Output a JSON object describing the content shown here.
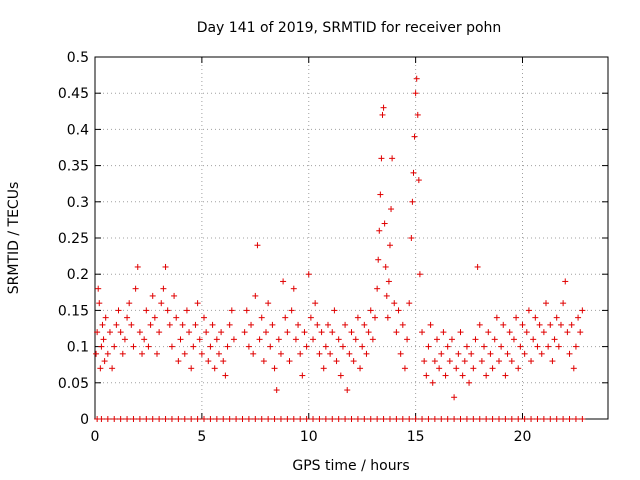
{
  "chart_data": {
    "type": "scatter",
    "title": "Day 141 of 2019, SRMTID for receiver pohn",
    "xlabel": "GPS time / hours",
    "ylabel": "SRMTID / TECUs",
    "xlim": [
      0,
      24
    ],
    "ylim": [
      0,
      0.5
    ],
    "x_ticks": [
      0,
      5,
      10,
      15,
      20
    ],
    "y_ticks": [
      0,
      0.05,
      0.1,
      0.15,
      0.2,
      0.25,
      0.3,
      0.35,
      0.4,
      0.45,
      0.5
    ],
    "grid": true,
    "marker": "+",
    "color": "#e00000",
    "series": [
      {
        "name": "SRMTID",
        "points": [
          [
            0.05,
            0.09
          ],
          [
            0.1,
            0.12
          ],
          [
            0.15,
            0.18
          ],
          [
            0.2,
            0.16
          ],
          [
            0.25,
            0.07
          ],
          [
            0.3,
            0.1
          ],
          [
            0.35,
            0.13
          ],
          [
            0.4,
            0.11
          ],
          [
            0.45,
            0.08
          ],
          [
            0.5,
            0.14
          ],
          [
            0.6,
            0.09
          ],
          [
            0.7,
            0.12
          ],
          [
            0.8,
            0.07
          ],
          [
            0.9,
            0.1
          ],
          [
            1.0,
            0.13
          ],
          [
            1.1,
            0.15
          ],
          [
            1.2,
            0.12
          ],
          [
            1.3,
            0.09
          ],
          [
            1.4,
            0.11
          ],
          [
            1.5,
            0.14
          ],
          [
            1.6,
            0.16
          ],
          [
            1.7,
            0.13
          ],
          [
            1.8,
            0.1
          ],
          [
            1.9,
            0.18
          ],
          [
            2.0,
            0.21
          ],
          [
            2.1,
            0.12
          ],
          [
            2.2,
            0.09
          ],
          [
            2.3,
            0.11
          ],
          [
            2.4,
            0.15
          ],
          [
            2.5,
            0.1
          ],
          [
            2.6,
            0.13
          ],
          [
            2.7,
            0.17
          ],
          [
            2.8,
            0.14
          ],
          [
            2.9,
            0.09
          ],
          [
            3.0,
            0.12
          ],
          [
            3.1,
            0.16
          ],
          [
            3.2,
            0.18
          ],
          [
            3.3,
            0.21
          ],
          [
            3.4,
            0.15
          ],
          [
            3.5,
            0.13
          ],
          [
            3.6,
            0.1
          ],
          [
            3.7,
            0.17
          ],
          [
            3.8,
            0.14
          ],
          [
            3.9,
            0.08
          ],
          [
            4.0,
            0.11
          ],
          [
            4.1,
            0.13
          ],
          [
            4.2,
            0.09
          ],
          [
            4.3,
            0.15
          ],
          [
            4.4,
            0.12
          ],
          [
            4.5,
            0.07
          ],
          [
            4.6,
            0.1
          ],
          [
            4.7,
            0.13
          ],
          [
            4.8,
            0.16
          ],
          [
            4.9,
            0.11
          ],
          [
            5.0,
            0.09
          ],
          [
            5.1,
            0.14
          ],
          [
            5.2,
            0.12
          ],
          [
            5.3,
            0.08
          ],
          [
            5.4,
            0.1
          ],
          [
            5.5,
            0.13
          ],
          [
            5.6,
            0.07
          ],
          [
            5.7,
            0.11
          ],
          [
            5.8,
            0.09
          ],
          [
            5.9,
            0.12
          ],
          [
            6.0,
            0.08
          ],
          [
            6.1,
            0.06
          ],
          [
            6.2,
            0.1
          ],
          [
            6.3,
            0.13
          ],
          [
            6.4,
            0.15
          ],
          [
            6.5,
            0.11
          ],
          [
            7.0,
            0.12
          ],
          [
            7.1,
            0.15
          ],
          [
            7.2,
            0.1
          ],
          [
            7.3,
            0.13
          ],
          [
            7.4,
            0.09
          ],
          [
            7.5,
            0.17
          ],
          [
            7.6,
            0.24
          ],
          [
            7.7,
            0.11
          ],
          [
            7.8,
            0.14
          ],
          [
            7.9,
            0.08
          ],
          [
            8.0,
            0.12
          ],
          [
            8.1,
            0.16
          ],
          [
            8.2,
            0.1
          ],
          [
            8.3,
            0.13
          ],
          [
            8.4,
            0.07
          ],
          [
            8.5,
            0.04
          ],
          [
            8.6,
            0.11
          ],
          [
            8.7,
            0.09
          ],
          [
            8.8,
            0.19
          ],
          [
            8.9,
            0.14
          ],
          [
            9.0,
            0.12
          ],
          [
            9.1,
            0.08
          ],
          [
            9.2,
            0.15
          ],
          [
            9.3,
            0.18
          ],
          [
            9.4,
            0.11
          ],
          [
            9.5,
            0.13
          ],
          [
            9.6,
            0.09
          ],
          [
            9.7,
            0.06
          ],
          [
            9.8,
            0.12
          ],
          [
            9.9,
            0.1
          ],
          [
            10.0,
            0.2
          ],
          [
            10.1,
            0.14
          ],
          [
            10.2,
            0.11
          ],
          [
            10.3,
            0.16
          ],
          [
            10.4,
            0.13
          ],
          [
            10.5,
            0.09
          ],
          [
            10.6,
            0.12
          ],
          [
            10.7,
            0.07
          ],
          [
            10.8,
            0.1
          ],
          [
            10.9,
            0.13
          ],
          [
            11.0,
            0.09
          ],
          [
            11.1,
            0.12
          ],
          [
            11.2,
            0.15
          ],
          [
            11.3,
            0.08
          ],
          [
            11.4,
            0.11
          ],
          [
            11.5,
            0.06
          ],
          [
            11.6,
            0.1
          ],
          [
            11.7,
            0.13
          ],
          [
            11.8,
            0.04
          ],
          [
            11.9,
            0.09
          ],
          [
            12.0,
            0.12
          ],
          [
            12.1,
            0.08
          ],
          [
            12.2,
            0.11
          ],
          [
            12.3,
            0.14
          ],
          [
            12.4,
            0.07
          ],
          [
            12.5,
            0.1
          ],
          [
            12.6,
            0.13
          ],
          [
            12.7,
            0.09
          ],
          [
            12.8,
            0.12
          ],
          [
            12.9,
            0.15
          ],
          [
            13.0,
            0.11
          ],
          [
            13.1,
            0.14
          ],
          [
            13.2,
            0.18
          ],
          [
            13.25,
            0.22
          ],
          [
            13.3,
            0.26
          ],
          [
            13.35,
            0.31
          ],
          [
            13.4,
            0.36
          ],
          [
            13.45,
            0.42
          ],
          [
            13.5,
            0.43
          ],
          [
            13.55,
            0.27
          ],
          [
            13.6,
            0.21
          ],
          [
            13.65,
            0.17
          ],
          [
            13.7,
            0.14
          ],
          [
            13.75,
            0.19
          ],
          [
            13.8,
            0.24
          ],
          [
            13.85,
            0.29
          ],
          [
            13.9,
            0.36
          ],
          [
            14.0,
            0.16
          ],
          [
            14.1,
            0.12
          ],
          [
            14.2,
            0.15
          ],
          [
            14.3,
            0.09
          ],
          [
            14.4,
            0.13
          ],
          [
            14.5,
            0.07
          ],
          [
            14.6,
            0.11
          ],
          [
            14.7,
            0.16
          ],
          [
            14.8,
            0.25
          ],
          [
            14.85,
            0.3
          ],
          [
            14.9,
            0.34
          ],
          [
            14.95,
            0.39
          ],
          [
            15.0,
            0.45
          ],
          [
            15.05,
            0.47
          ],
          [
            15.1,
            0.42
          ],
          [
            15.15,
            0.33
          ],
          [
            15.2,
            0.2
          ],
          [
            15.3,
            0.12
          ],
          [
            15.4,
            0.08
          ],
          [
            15.5,
            0.06
          ],
          [
            15.6,
            0.1
          ],
          [
            15.7,
            0.13
          ],
          [
            15.8,
            0.05
          ],
          [
            15.9,
            0.08
          ],
          [
            16.0,
            0.11
          ],
          [
            16.1,
            0.07
          ],
          [
            16.2,
            0.09
          ],
          [
            16.3,
            0.12
          ],
          [
            16.4,
            0.06
          ],
          [
            16.5,
            0.1
          ],
          [
            16.6,
            0.08
          ],
          [
            16.7,
            0.11
          ],
          [
            16.8,
            0.03
          ],
          [
            16.9,
            0.07
          ],
          [
            17.0,
            0.09
          ],
          [
            17.1,
            0.12
          ],
          [
            17.2,
            0.06
          ],
          [
            17.3,
            0.08
          ],
          [
            17.4,
            0.1
          ],
          [
            17.5,
            0.05
          ],
          [
            17.6,
            0.09
          ],
          [
            17.7,
            0.07
          ],
          [
            17.8,
            0.11
          ],
          [
            17.9,
            0.21
          ],
          [
            18.0,
            0.13
          ],
          [
            18.1,
            0.08
          ],
          [
            18.2,
            0.1
          ],
          [
            18.3,
            0.06
          ],
          [
            18.4,
            0.12
          ],
          [
            18.5,
            0.09
          ],
          [
            18.6,
            0.07
          ],
          [
            18.7,
            0.11
          ],
          [
            18.8,
            0.14
          ],
          [
            18.9,
            0.08
          ],
          [
            19.0,
            0.1
          ],
          [
            19.1,
            0.13
          ],
          [
            19.2,
            0.06
          ],
          [
            19.3,
            0.09
          ],
          [
            19.4,
            0.12
          ],
          [
            19.5,
            0.08
          ],
          [
            19.6,
            0.11
          ],
          [
            19.7,
            0.14
          ],
          [
            19.8,
            0.07
          ],
          [
            19.9,
            0.1
          ],
          [
            20.0,
            0.13
          ],
          [
            20.1,
            0.09
          ],
          [
            20.2,
            0.12
          ],
          [
            20.3,
            0.15
          ],
          [
            20.4,
            0.08
          ],
          [
            20.5,
            0.11
          ],
          [
            20.6,
            0.14
          ],
          [
            20.7,
            0.1
          ],
          [
            20.8,
            0.13
          ],
          [
            20.9,
            0.09
          ],
          [
            21.0,
            0.12
          ],
          [
            21.1,
            0.16
          ],
          [
            21.2,
            0.1
          ],
          [
            21.3,
            0.13
          ],
          [
            21.4,
            0.08
          ],
          [
            21.5,
            0.11
          ],
          [
            21.6,
            0.14
          ],
          [
            21.7,
            0.1
          ],
          [
            21.8,
            0.13
          ],
          [
            21.9,
            0.16
          ],
          [
            22.0,
            0.19
          ],
          [
            22.1,
            0.12
          ],
          [
            22.2,
            0.09
          ],
          [
            22.3,
            0.13
          ],
          [
            22.4,
            0.07
          ],
          [
            22.5,
            0.1
          ],
          [
            22.6,
            0.14
          ],
          [
            22.7,
            0.12
          ],
          [
            22.8,
            0.15
          ]
        ],
        "zero_x": [
          0.1,
          0.3,
          0.6,
          0.9,
          1.2,
          1.5,
          1.8,
          2.1,
          2.4,
          2.7,
          3.0,
          3.3,
          3.6,
          3.9,
          4.2,
          4.5,
          4.8,
          5.1,
          5.4,
          5.7,
          6.0,
          6.3,
          6.6,
          6.9,
          7.2,
          7.5,
          7.8,
          8.1,
          8.4,
          8.7,
          9.0,
          9.3,
          9.6,
          9.9,
          10.2,
          10.5,
          10.8,
          11.1,
          11.4,
          11.7,
          12.0,
          12.3,
          12.6,
          12.9,
          13.2,
          13.5,
          13.8,
          14.1,
          14.4,
          14.7,
          15.0,
          15.3,
          15.6,
          15.9,
          16.2,
          16.5,
          16.8,
          17.1,
          17.4,
          17.7,
          18.0,
          18.3,
          18.6,
          18.9,
          19.2,
          19.5,
          19.8,
          20.1,
          20.4,
          20.7,
          21.0,
          21.3,
          21.6,
          21.9,
          22.2,
          22.5,
          22.8
        ]
      }
    ]
  }
}
